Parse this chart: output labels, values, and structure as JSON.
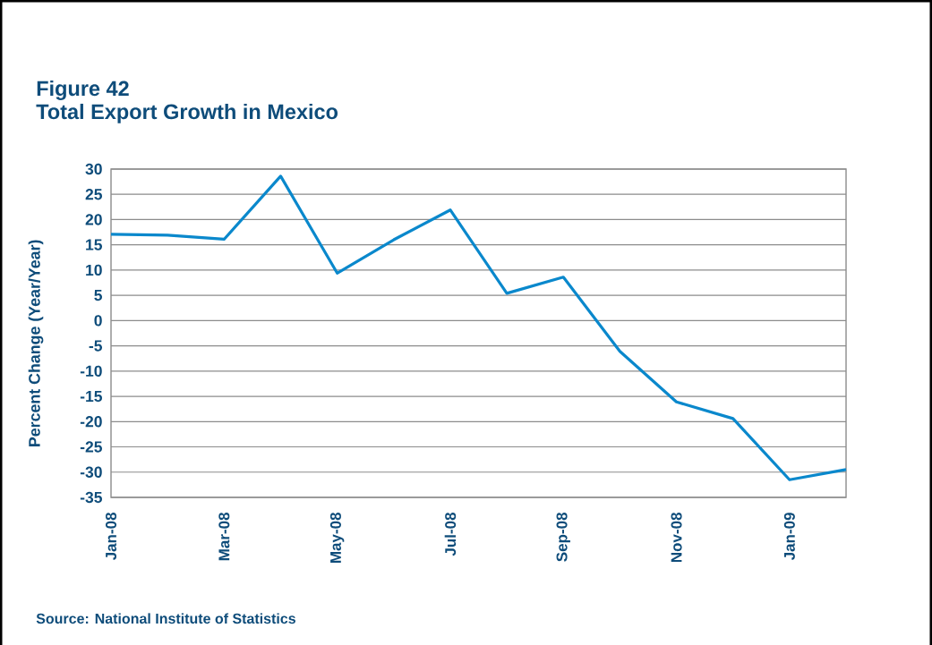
{
  "chart_data": {
    "type": "line",
    "title": "Figure 42",
    "subtitle": "Total Export Growth in Mexico",
    "ylabel": "Percent Change (Year/Year)",
    "annotations": [
      "Source: National Institute of Statistics"
    ],
    "categories": [
      "Jan-08",
      null,
      "Mar-08",
      null,
      "May-08",
      null,
      "Jul-08",
      null,
      "Sep-08",
      null,
      "Nov-08",
      null,
      "Jan-09",
      null
    ],
    "values": [
      17.1,
      16.9,
      16.1,
      28.6,
      9.4,
      16.0,
      21.9,
      5.4,
      8.6,
      -6.1,
      -16.1,
      -19.4,
      -31.5,
      -29.5
    ],
    "color": "#0a88cc",
    "line_style": "solid",
    "ylim": [
      -35,
      30
    ],
    "yticks": [
      -35,
      -30,
      -25,
      -20,
      -15,
      -10,
      -5,
      0,
      5,
      10,
      15,
      20,
      25,
      30
    ],
    "grid": "y"
  }
}
